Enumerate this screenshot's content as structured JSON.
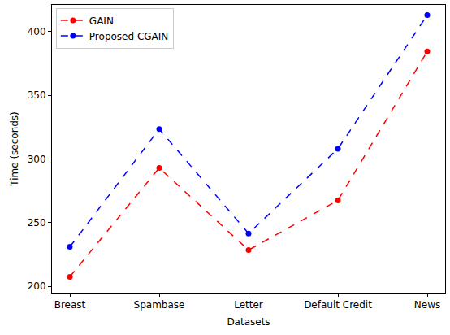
{
  "chart_data": {
    "type": "line",
    "x_label": "Datasets",
    "y_label": "Time (seconds)",
    "categories": [
      "Breast",
      "Spambase",
      "Letter",
      "Default Credit",
      "News"
    ],
    "series": [
      {
        "name": "GAIN",
        "color": "#ff0000",
        "values": [
          207.5,
          293,
          228.5,
          267.5,
          384.5
        ],
        "marker": "circle",
        "line_style": "dash"
      },
      {
        "name": "Proposed CGAIN",
        "color": "#0000ff",
        "values": [
          231,
          323.5,
          241.5,
          308,
          413
        ],
        "marker": "circle",
        "line_style": "dash"
      }
    ],
    "ylim": [
      195,
      421
    ],
    "yticks": [
      200,
      250,
      300,
      350,
      400
    ],
    "grid": false,
    "legend": "upper left"
  }
}
